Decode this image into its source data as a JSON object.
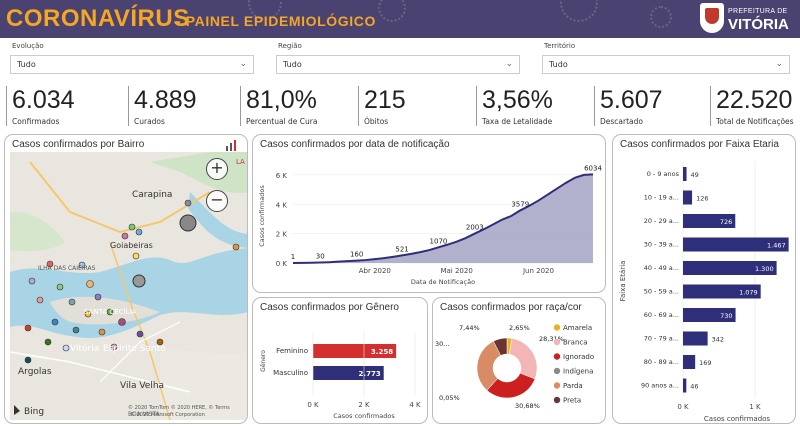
{
  "header": {
    "title": "CORONAVÍRUS",
    "subtitle": "- PAINEL EPIDEMIOLÓGICO",
    "logo_line1": "PREFEITURA DE",
    "logo_line2": "VITÓRIA"
  },
  "filters": [
    {
      "label": "Evolução",
      "value": "Tudo"
    },
    {
      "label": "Região",
      "value": "Tudo"
    },
    {
      "label": "Território",
      "value": "Tudo"
    }
  ],
  "kpis": [
    {
      "value": "6.034",
      "label": "Confirmados"
    },
    {
      "value": "4.889",
      "label": "Curados"
    },
    {
      "value": "81,0%",
      "label": "Percentual de Cura"
    },
    {
      "value": "215",
      "label": "Óbitos"
    },
    {
      "value": "3,56%",
      "label": "Taxa de Letalidade"
    },
    {
      "value": "5.607",
      "label": "Descartado"
    },
    {
      "value": "22.520",
      "label": "Total de Notificações"
    }
  ],
  "map_card": {
    "title": "Casos confirmados por Bairro",
    "places": [
      "Carapina",
      "Goiabeiras",
      "ILHA DAS CAIEIRAS",
      "SANTA CECÍLIA",
      "Vitória",
      "Espírito Santo",
      "Argolas",
      "Vila Velha",
      "BOA VISTA"
    ],
    "attribution": "© 2020 TomTom © 2020 HERE, © Terms",
    "attribution2": "© 2020 Microsoft Corporation",
    "bing": "Bing",
    "zoom_in": "+",
    "zoom_out": "−",
    "corner_text": "LA"
  },
  "colors": {
    "header": "#4a4270",
    "accent": "#f5a623",
    "series_navy": "#2e2e7a",
    "area_fill": "#a8a9c9",
    "bar_red": "#d32f2f"
  },
  "chart_data": [
    {
      "type": "area",
      "title": "Casos confirmados por data de notificação",
      "xlabel": "Data de Notificação",
      "ylabel": "Casos confirmados",
      "x_ticks": [
        "Abr 2020",
        "Mai 2020",
        "Jun 2020"
      ],
      "y_ticks": [
        "0 K",
        "2 K",
        "4 K",
        "6 K"
      ],
      "ylim": [
        0,
        6400
      ],
      "y_values": [
        1,
        8,
        18,
        30,
        55,
        90,
        130,
        160,
        200,
        260,
        330,
        420,
        521,
        620,
        740,
        880,
        1070,
        1250,
        1450,
        1700,
        2003,
        2300,
        2620,
        2950,
        3200,
        3579,
        3900,
        4250,
        4650,
        5050,
        5450,
        5800,
        6000,
        6034
      ],
      "data_labels": [
        {
          "index": 0,
          "text": "1"
        },
        {
          "index": 3,
          "text": "30"
        },
        {
          "index": 7,
          "text": "160"
        },
        {
          "index": 12,
          "text": "521"
        },
        {
          "index": 16,
          "text": "1070"
        },
        {
          "index": 20,
          "text": "2003"
        },
        {
          "index": 25,
          "text": "3579"
        },
        {
          "index": 33,
          "text": "6034"
        }
      ]
    },
    {
      "type": "bar",
      "orientation": "horizontal",
      "title": "Casos confirmados por Gênero",
      "xlabel": "Casos confirmados",
      "ylabel": "Gênero",
      "categories": [
        "Feminino",
        "Masculino"
      ],
      "values": [
        3258,
        2773
      ],
      "value_labels": [
        "3.258",
        "2.773"
      ],
      "colors": [
        "#d32f2f",
        "#2e2e7a"
      ],
      "x_ticks": [
        "0 K",
        "2 K",
        "4 K"
      ],
      "xlim": [
        0,
        4000
      ]
    },
    {
      "type": "pie",
      "title": "Casos confirmados por raça/cor",
      "donut": true,
      "categories": [
        "Amarela",
        "Branca",
        "Ignorado",
        "Indígena",
        "Parda",
        "Preta"
      ],
      "values": [
        2.65,
        28.31,
        30.68,
        0.05,
        30.87,
        7.44
      ],
      "labels": [
        "2,65%",
        "28,31%",
        "30,68%",
        "0,05%",
        "30...",
        "7,44%"
      ],
      "colors": [
        "#e8b422",
        "#f3b5b5",
        "#cc1f1f",
        "#8a8a8a",
        "#d98b66",
        "#6b3434"
      ]
    },
    {
      "type": "bar",
      "orientation": "horizontal",
      "title": "Casos confirmados por Faixa Etaria",
      "xlabel": "Casos confirmados",
      "ylabel": "Faixa Etária",
      "categories": [
        "0 - 9 anos",
        "10 - 19 a...",
        "20 - 29 a...",
        "30 - 39 a...",
        "40 - 49 a...",
        "50 - 59 a...",
        "60 - 69 a...",
        "70 - 79 a...",
        "80 - 89 a...",
        "90 anos a..."
      ],
      "values": [
        49,
        126,
        726,
        1467,
        1300,
        1079,
        730,
        342,
        169,
        46
      ],
      "value_labels": [
        "49",
        "126",
        "726",
        "1.467",
        "1.300",
        "1.079",
        "730",
        "342",
        "169",
        "46"
      ],
      "x_ticks": [
        "0 K",
        "1 K"
      ],
      "xlim": [
        0,
        1500
      ]
    }
  ]
}
